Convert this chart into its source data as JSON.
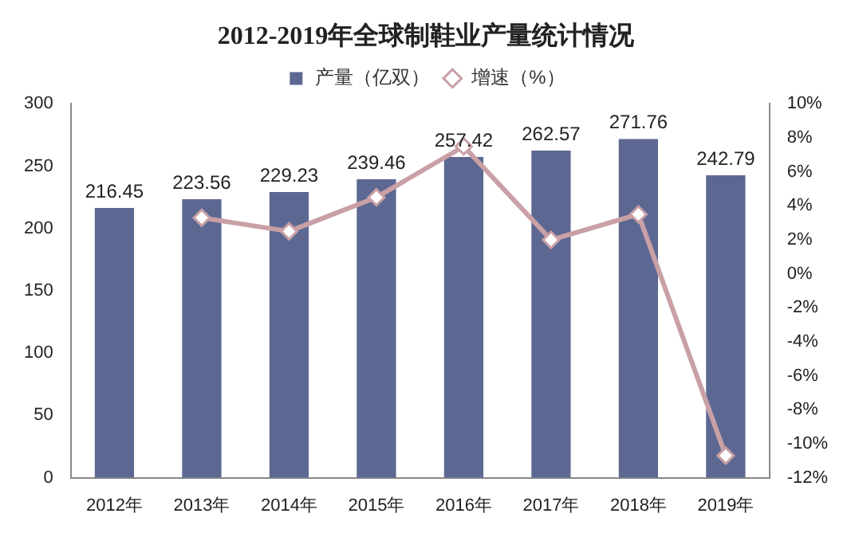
{
  "chart_data": {
    "type": "bar",
    "title": "2012-2019年全球制鞋业产量统计情况",
    "categories": [
      "2012年",
      "2013年",
      "2014年",
      "2015年",
      "2016年",
      "2017年",
      "2018年",
      "2019年"
    ],
    "series": [
      {
        "name": "产量（亿双）",
        "color": "#5d6892",
        "values": [
          216.45,
          223.56,
          229.23,
          239.46,
          257.42,
          262.57,
          271.76,
          242.79
        ],
        "value_labels": [
          "216.45",
          "223.56",
          "229.23",
          "239.46",
          "257.42",
          "262.57",
          "271.76",
          "242.79"
        ]
      },
      {
        "name": "增速（%）",
        "type": "line",
        "axis": "y2",
        "color": "#c9a0a6",
        "marker": "diamond",
        "values": [
          null,
          3.3,
          2.5,
          4.5,
          7.5,
          2.0,
          3.5,
          -10.7
        ]
      }
    ],
    "ylim": [
      0,
      300
    ],
    "yticks": [
      0,
      50,
      100,
      150,
      200,
      250,
      300
    ],
    "y2lim": [
      -12,
      10
    ],
    "y2ticks": [
      {
        "value": -12,
        "label": "-12%"
      },
      {
        "value": -10,
        "label": "-10%"
      },
      {
        "value": -8,
        "label": "-8%"
      },
      {
        "value": -6,
        "label": "-6%"
      },
      {
        "value": -4,
        "label": "-4%"
      },
      {
        "value": -2,
        "label": "-2%"
      },
      {
        "value": 0,
        "label": "0%"
      },
      {
        "value": 2,
        "label": "2%"
      },
      {
        "value": 4,
        "label": "4%"
      },
      {
        "value": 6,
        "label": "6%"
      },
      {
        "value": 8,
        "label": "8%"
      },
      {
        "value": 10,
        "label": "10%"
      }
    ],
    "grid": false,
    "legend": "top"
  }
}
